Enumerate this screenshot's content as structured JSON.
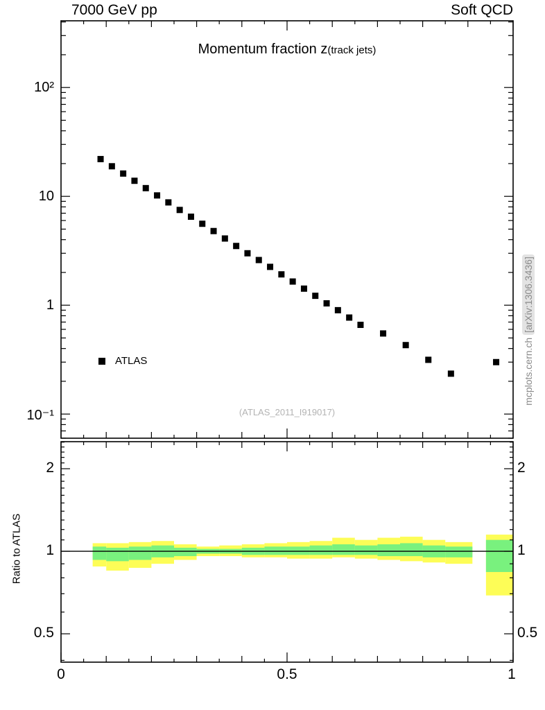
{
  "header": {
    "left_label": "7000 GeV pp",
    "right_label": "Soft QCD"
  },
  "side_label": {
    "site": "mcplots.cern.ch ",
    "arxiv": "[arXiv:1306.3436]"
  },
  "main_panel": {
    "title": "Momentum fraction z",
    "title_suffix": "(track jets)",
    "legend": {
      "marker": "filled-black-square",
      "label": "ATLAS"
    },
    "watermark": "(ATLAS_2011_I919017)",
    "ytick_labels": [
      "10²",
      "10",
      "1",
      "10⁻¹"
    ]
  },
  "ratio_panel": {
    "ylabel": "Ratio to ATLAS",
    "ytick_labels_left": [
      "2",
      "1",
      "0.5"
    ],
    "ytick_labels_right": [
      "2",
      "1",
      "0.5"
    ],
    "xtick_labels": [
      "0",
      "0.5",
      "1"
    ]
  },
  "chart_data": [
    {
      "type": "scatter",
      "title": "Momentum fraction z(track jets)",
      "xlabel": "z",
      "ylabel": "",
      "x_range": [
        0,
        1
      ],
      "y_scale": "log",
      "y_range": [
        0.06,
        410
      ],
      "yticks": [
        100,
        10,
        1,
        0.1
      ],
      "legend_position": "lower-left",
      "grid": false,
      "series": [
        {
          "name": "ATLAS",
          "marker": "filled-square",
          "color": "#000000",
          "x": [
            0.0875,
            0.1125,
            0.1375,
            0.1625,
            0.1875,
            0.2125,
            0.2375,
            0.2625,
            0.2875,
            0.3125,
            0.3375,
            0.3625,
            0.3875,
            0.4125,
            0.4375,
            0.4625,
            0.4875,
            0.5125,
            0.5375,
            0.5625,
            0.5875,
            0.6125,
            0.6375,
            0.6625,
            0.7125,
            0.7625,
            0.8125,
            0.8625,
            0.9625
          ],
          "y": [
            22,
            18.9,
            16.2,
            13.9,
            11.9,
            10.2,
            8.8,
            7.5,
            6.5,
            5.6,
            4.8,
            4.1,
            3.5,
            3.0,
            2.6,
            2.25,
            1.92,
            1.65,
            1.42,
            1.22,
            1.04,
            0.9,
            0.77,
            0.66,
            0.55,
            0.43,
            0.315,
            0.235,
            0.3
          ]
        }
      ]
    },
    {
      "type": "band",
      "ylabel": "Ratio to ATLAS",
      "y_scale": "log",
      "y_range": [
        0.394,
        2.51
      ],
      "yticks": [
        0.5,
        1,
        2
      ],
      "xticks": [
        0,
        0.5,
        1
      ],
      "x_range": [
        0,
        1
      ],
      "reference_line": 1.0,
      "colors": {
        "total_band": "#fdfd57",
        "stat_band": "#79f17e"
      },
      "bands": [
        {
          "name": "total-uncertainty",
          "color": "#fdfd57",
          "segments": [
            [
              0.07,
              0.1,
              0.88,
              1.07
            ],
            [
              0.1,
              0.15,
              0.85,
              1.07
            ],
            [
              0.15,
              0.2,
              0.87,
              1.08
            ],
            [
              0.2,
              0.25,
              0.9,
              1.09
            ],
            [
              0.25,
              0.3,
              0.93,
              1.06
            ],
            [
              0.3,
              0.35,
              0.96,
              1.04
            ],
            [
              0.35,
              0.4,
              0.96,
              1.05
            ],
            [
              0.4,
              0.45,
              0.95,
              1.06
            ],
            [
              0.45,
              0.5,
              0.95,
              1.07
            ],
            [
              0.5,
              0.55,
              0.94,
              1.08
            ],
            [
              0.55,
              0.6,
              0.94,
              1.09
            ],
            [
              0.6,
              0.65,
              0.95,
              1.12
            ],
            [
              0.65,
              0.7,
              0.94,
              1.1
            ],
            [
              0.7,
              0.75,
              0.93,
              1.12
            ],
            [
              0.75,
              0.8,
              0.92,
              1.13
            ],
            [
              0.8,
              0.85,
              0.91,
              1.1
            ],
            [
              0.85,
              0.91,
              0.9,
              1.08
            ],
            [
              0.94,
              1.0,
              0.69,
              1.15
            ]
          ]
        },
        {
          "name": "stat-uncertainty",
          "color": "#79f17e",
          "segments": [
            [
              0.07,
              0.1,
              0.93,
              1.04
            ],
            [
              0.1,
              0.15,
              0.92,
              1.03
            ],
            [
              0.15,
              0.2,
              0.93,
              1.04
            ],
            [
              0.2,
              0.25,
              0.95,
              1.05
            ],
            [
              0.25,
              0.3,
              0.96,
              1.03
            ],
            [
              0.3,
              0.35,
              0.98,
              1.02
            ],
            [
              0.35,
              0.4,
              0.98,
              1.02
            ],
            [
              0.4,
              0.45,
              0.97,
              1.03
            ],
            [
              0.45,
              0.5,
              0.97,
              1.04
            ],
            [
              0.5,
              0.55,
              0.97,
              1.04
            ],
            [
              0.55,
              0.6,
              0.97,
              1.05
            ],
            [
              0.6,
              0.65,
              0.97,
              1.06
            ],
            [
              0.65,
              0.7,
              0.97,
              1.05
            ],
            [
              0.7,
              0.75,
              0.96,
              1.06
            ],
            [
              0.75,
              0.8,
              0.96,
              1.07
            ],
            [
              0.8,
              0.85,
              0.95,
              1.05
            ],
            [
              0.85,
              0.91,
              0.95,
              1.04
            ],
            [
              0.94,
              1.0,
              0.84,
              1.1
            ]
          ]
        }
      ]
    }
  ]
}
